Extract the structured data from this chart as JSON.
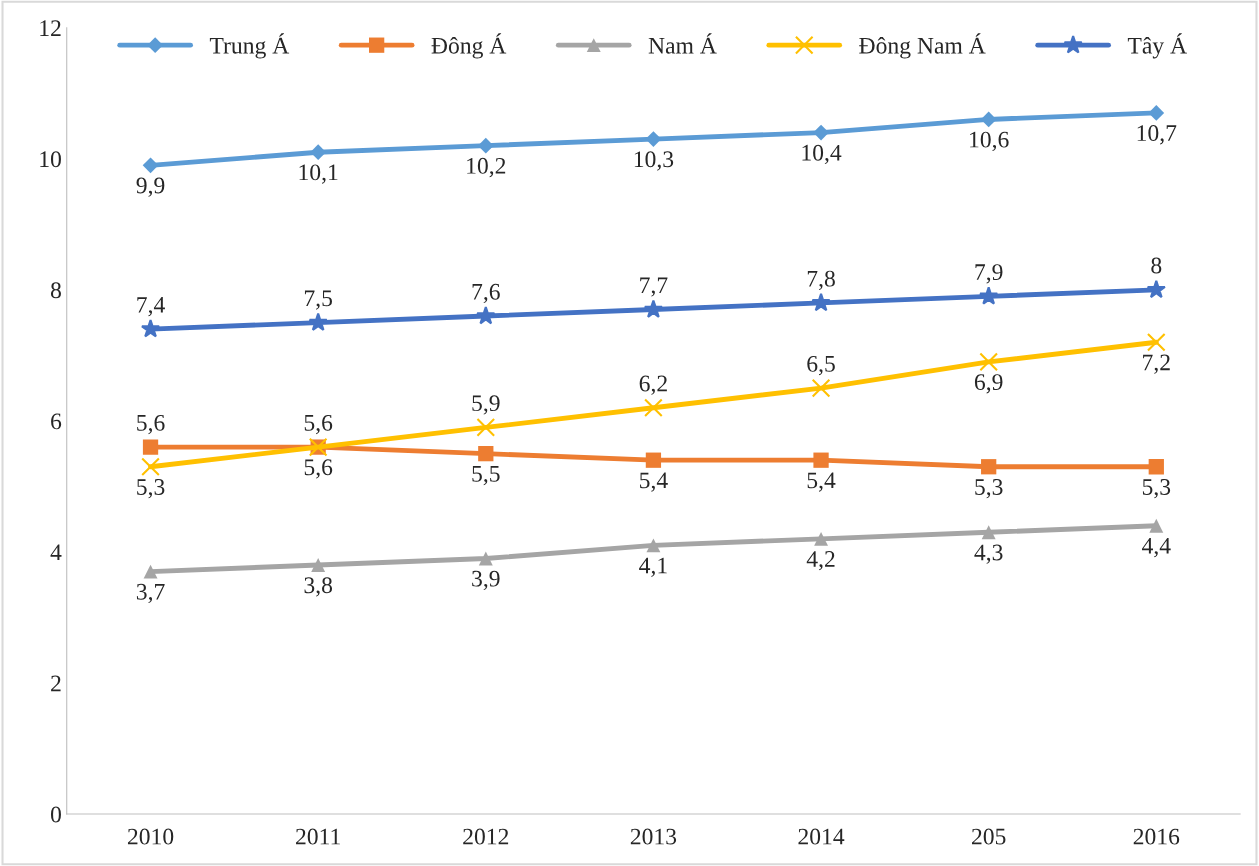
{
  "chart_data": {
    "type": "line",
    "categories": [
      "2010",
      "2011",
      "2012",
      "2013",
      "2014",
      "205",
      "2016"
    ],
    "series": [
      {
        "name": "Trung Á",
        "color": "#5b9bd5",
        "marker": "diamond",
        "values": [
          9.9,
          10.1,
          10.2,
          10.3,
          10.4,
          10.6,
          10.7
        ],
        "value_labels": [
          "9,9",
          "10,1",
          "10,2",
          "10,3",
          "10,4",
          "10,6",
          "10,7"
        ]
      },
      {
        "name": "Đông Á",
        "color": "#ed7d31",
        "marker": "square",
        "values": [
          5.6,
          5.6,
          5.5,
          5.4,
          5.4,
          5.3,
          5.3
        ],
        "value_labels": [
          "5,6",
          "5,6",
          "5,5",
          "5,4",
          "5,4",
          "5,3",
          "5,3"
        ]
      },
      {
        "name": "Nam Á",
        "color": "#a5a5a5",
        "marker": "triangle",
        "values": [
          3.7,
          3.8,
          3.9,
          4.1,
          4.2,
          4.3,
          4.4
        ],
        "value_labels": [
          "3,7",
          "3,8",
          "3,9",
          "4,1",
          "4,2",
          "4,3",
          "4,4"
        ]
      },
      {
        "name": "Đông Nam Á",
        "color": "#ffc000",
        "marker": "cross",
        "values": [
          5.3,
          5.6,
          5.9,
          6.2,
          6.5,
          6.9,
          7.2
        ],
        "value_labels": [
          "5,3",
          "5,6",
          "5,9",
          "6,2",
          "6,5",
          "6,9",
          "7,2"
        ]
      },
      {
        "name": "Tây Á",
        "color": "#4472c4",
        "marker": "star",
        "values": [
          7.4,
          7.5,
          7.6,
          7.7,
          7.8,
          7.9,
          8
        ],
        "value_labels": [
          "7,4",
          "7,5",
          "7,6",
          "7,7",
          "7,8",
          "7,9",
          "8"
        ]
      }
    ],
    "ylim": [
      0,
      12
    ],
    "yticks": [
      0,
      2,
      4,
      6,
      8,
      10,
      12
    ],
    "grid": false,
    "legend": "top",
    "line_style": "solid"
  }
}
